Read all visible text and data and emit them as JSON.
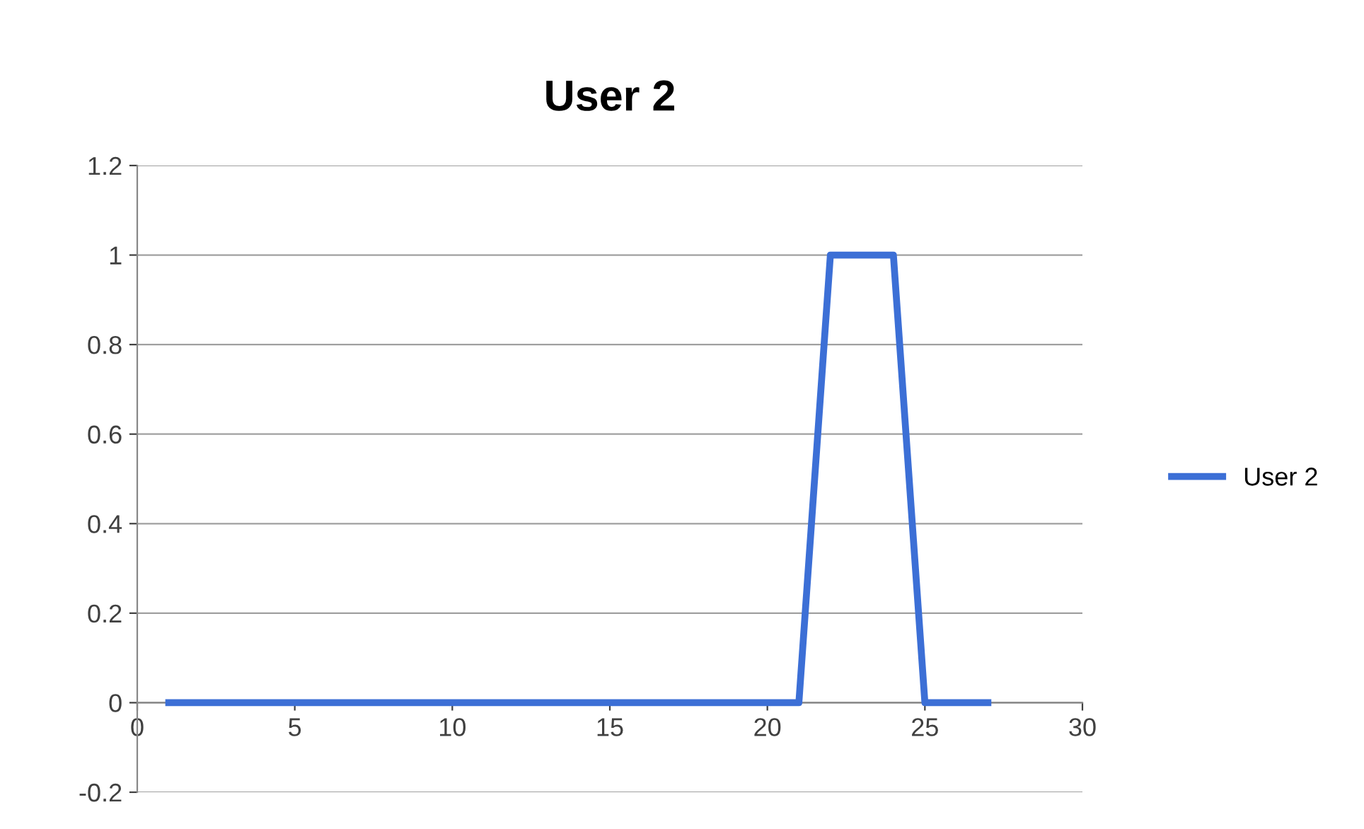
{
  "chart_data": {
    "type": "line",
    "title": "User 2",
    "x": [
      1,
      2,
      3,
      4,
      5,
      6,
      7,
      8,
      9,
      10,
      11,
      12,
      13,
      14,
      15,
      16,
      17,
      18,
      19,
      20,
      21,
      22,
      23,
      24,
      25,
      26,
      27
    ],
    "series": [
      {
        "name": "User 2",
        "color": "#3c6fd6",
        "values": [
          0,
          0,
          0,
          0,
          0,
          0,
          0,
          0,
          0,
          0,
          0,
          0,
          0,
          0,
          0,
          0,
          0,
          0,
          0,
          0,
          0,
          1,
          1,
          1,
          0,
          0,
          0
        ]
      }
    ],
    "xlim": [
      0,
      30
    ],
    "xticks": [
      0,
      5,
      10,
      15,
      20,
      25,
      30
    ],
    "ylim": [
      -0.2,
      1.2
    ],
    "yticks": [
      -0.2,
      0,
      0.2,
      0.4,
      0.6,
      0.8,
      1,
      1.2
    ],
    "grid": "y",
    "legend": "right",
    "marker": "none",
    "line_style": "solid"
  }
}
